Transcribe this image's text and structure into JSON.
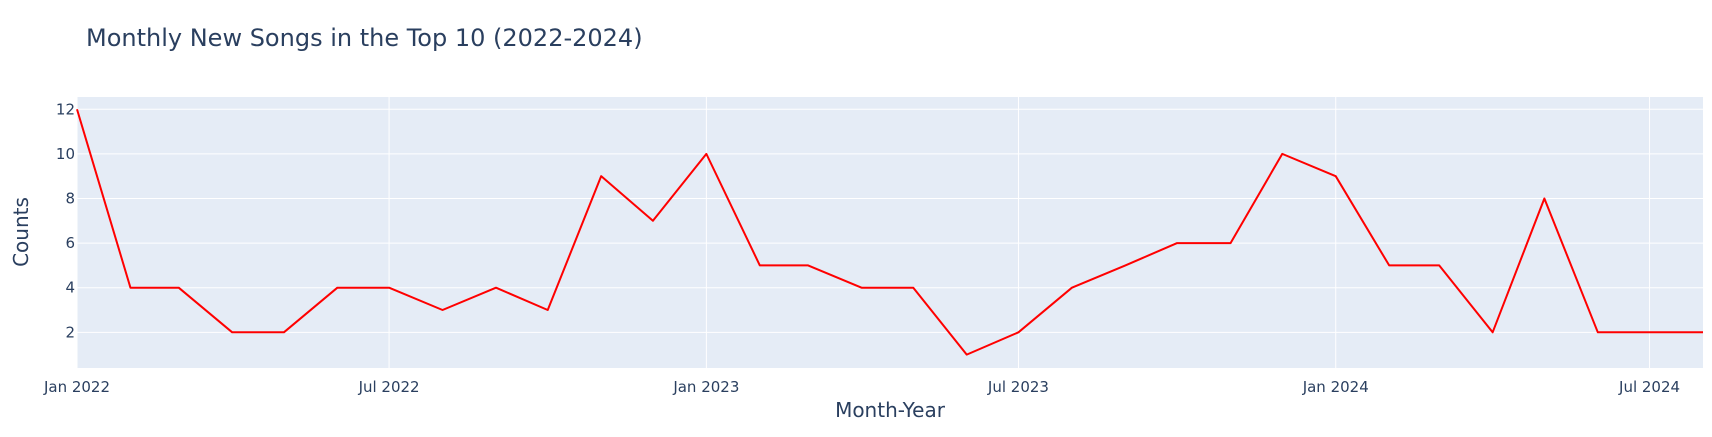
{
  "chart_data": {
    "type": "line",
    "title": "Monthly New Songs in the Top 10 (2022-2024)",
    "xlabel": "Month-Year",
    "ylabel": "Counts",
    "x": [
      "2022-01",
      "2022-02",
      "2022-03",
      "2022-04",
      "2022-05",
      "2022-06",
      "2022-07",
      "2022-08",
      "2022-09",
      "2022-10",
      "2022-11",
      "2022-12",
      "2023-01",
      "2023-02",
      "2023-03",
      "2023-04",
      "2023-05",
      "2023-06",
      "2023-07",
      "2023-08",
      "2023-09",
      "2023-10",
      "2023-11",
      "2023-12",
      "2024-01",
      "2024-02",
      "2024-03",
      "2024-04",
      "2024-05",
      "2024-06",
      "2024-07",
      "2024-08"
    ],
    "series": [
      {
        "values": [
          12,
          4,
          4,
          2,
          2,
          4,
          4,
          3,
          4,
          3,
          9,
          7,
          10,
          5,
          5,
          4,
          4,
          1,
          2,
          4,
          5,
          6,
          6,
          10,
          9,
          5,
          5,
          2,
          8,
          2,
          2,
          2
        ],
        "color": "#ff0000"
      }
    ],
    "x_range": [
      "2022-01-01",
      "2024-08-01"
    ],
    "y_range": [
      0.4,
      12.55
    ],
    "x_ticks": [
      {
        "date": "2022-01-01",
        "label": "Jan 2022"
      },
      {
        "date": "2022-07-01",
        "label": "Jul 2022"
      },
      {
        "date": "2023-01-01",
        "label": "Jan 2023"
      },
      {
        "date": "2023-07-01",
        "label": "Jul 2023"
      },
      {
        "date": "2024-01-01",
        "label": "Jan 2024"
      },
      {
        "date": "2024-07-01",
        "label": "Jul 2024"
      }
    ],
    "y_ticks": [
      2,
      4,
      6,
      8,
      10,
      12
    ],
    "grid": true,
    "plot_bgcolor": "#e5ecf6",
    "grid_color": "#ffffff",
    "text_color": "#2a3f5f"
  }
}
